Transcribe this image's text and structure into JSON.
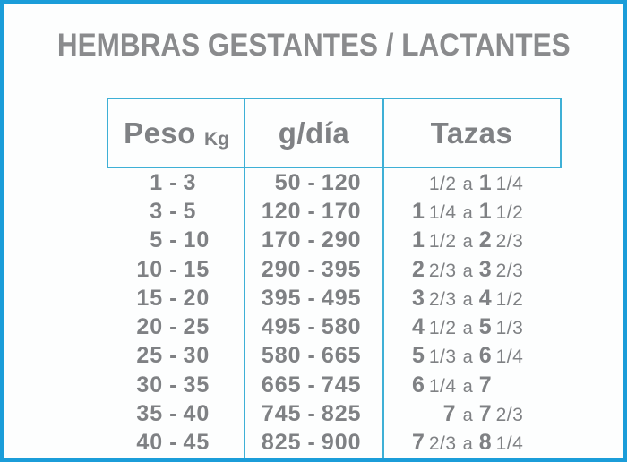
{
  "page": {
    "title": "HEMBRAS GESTANTES / LACTANTES",
    "colors": {
      "outer_border": "#1B9DD9",
      "grid": "#3EB0D6",
      "text": "#7F8184",
      "title_text": "#8A8B8D",
      "background": "#FDFEFE"
    }
  },
  "table": {
    "header": {
      "peso_label": "Peso",
      "peso_unit": "Kg",
      "gdia_label": "g/día",
      "tazas_label": "Tazas"
    },
    "separators": {
      "peso": "-",
      "gdia": "-",
      "tazas": "a"
    },
    "rows": [
      {
        "peso": {
          "from": "1",
          "to": "3"
        },
        "gdia": {
          "from": "50",
          "to": "120"
        },
        "tazas": {
          "from": "1/2",
          "to": "1 1/4"
        }
      },
      {
        "peso": {
          "from": "3",
          "to": "5"
        },
        "gdia": {
          "from": "120",
          "to": "170"
        },
        "tazas": {
          "from": "1 1/4",
          "to": "1 1/2"
        }
      },
      {
        "peso": {
          "from": "5",
          "to": "10"
        },
        "gdia": {
          "from": "170",
          "to": "290"
        },
        "tazas": {
          "from": "1 1/2",
          "to": "2 2/3"
        }
      },
      {
        "peso": {
          "from": "10",
          "to": "15"
        },
        "gdia": {
          "from": "290",
          "to": "395"
        },
        "tazas": {
          "from": "2 2/3",
          "to": "3 2/3"
        }
      },
      {
        "peso": {
          "from": "15",
          "to": "20"
        },
        "gdia": {
          "from": "395",
          "to": "495"
        },
        "tazas": {
          "from": "3 2/3",
          "to": "4 1/2"
        }
      },
      {
        "peso": {
          "from": "20",
          "to": "25"
        },
        "gdia": {
          "from": "495",
          "to": "580"
        },
        "tazas": {
          "from": "4 1/2",
          "to": "5 1/3"
        }
      },
      {
        "peso": {
          "from": "25",
          "to": "30"
        },
        "gdia": {
          "from": "580",
          "to": "665"
        },
        "tazas": {
          "from": "5 1/3",
          "to": "6 1/4"
        }
      },
      {
        "peso": {
          "from": "30",
          "to": "35"
        },
        "gdia": {
          "from": "665",
          "to": "745"
        },
        "tazas": {
          "from": "6 1/4",
          "to": "7"
        }
      },
      {
        "peso": {
          "from": "35",
          "to": "40"
        },
        "gdia": {
          "from": "745",
          "to": "825"
        },
        "tazas": {
          "from": "7",
          "to": "7 2/3"
        }
      },
      {
        "peso": {
          "from": "40",
          "to": "45"
        },
        "gdia": {
          "from": "825",
          "to": "900"
        },
        "tazas": {
          "from": "7 2/3",
          "to": "8 1/4"
        }
      }
    ]
  },
  "chart_data": {
    "type": "table",
    "title": "HEMBRAS GESTANTES / LACTANTES",
    "columns": [
      "Peso Kg",
      "g/día",
      "Tazas"
    ],
    "rows": [
      [
        "1 - 3",
        "50 - 120",
        "1/2 a 1 1/4"
      ],
      [
        "3 - 5",
        "120 - 170",
        "1 1/4 a 1 1/2"
      ],
      [
        "5 - 10",
        "170 - 290",
        "1 1/2 a 2 2/3"
      ],
      [
        "10 - 15",
        "290 - 395",
        "2 2/3 a 3 2/3"
      ],
      [
        "15 - 20",
        "395 - 495",
        "3 2/3 a 4 1/2"
      ],
      [
        "20 - 25",
        "495 - 580",
        "4 1/2 a 5 1/3"
      ],
      [
        "25 - 30",
        "580 - 665",
        "5 1/3 a 6 1/4"
      ],
      [
        "30 - 35",
        "665 - 745",
        "6 1/4 a 7"
      ],
      [
        "35 - 40",
        "745 - 825",
        "7 a 7 2/3"
      ],
      [
        "40 - 45",
        "825 - 900",
        "7 2/3 a 8 1/4"
      ]
    ],
    "layout": {
      "header_boxed": true,
      "column_dividers": true,
      "row_lines": false,
      "value_alignment": "separator-centered sub-columns"
    }
  }
}
